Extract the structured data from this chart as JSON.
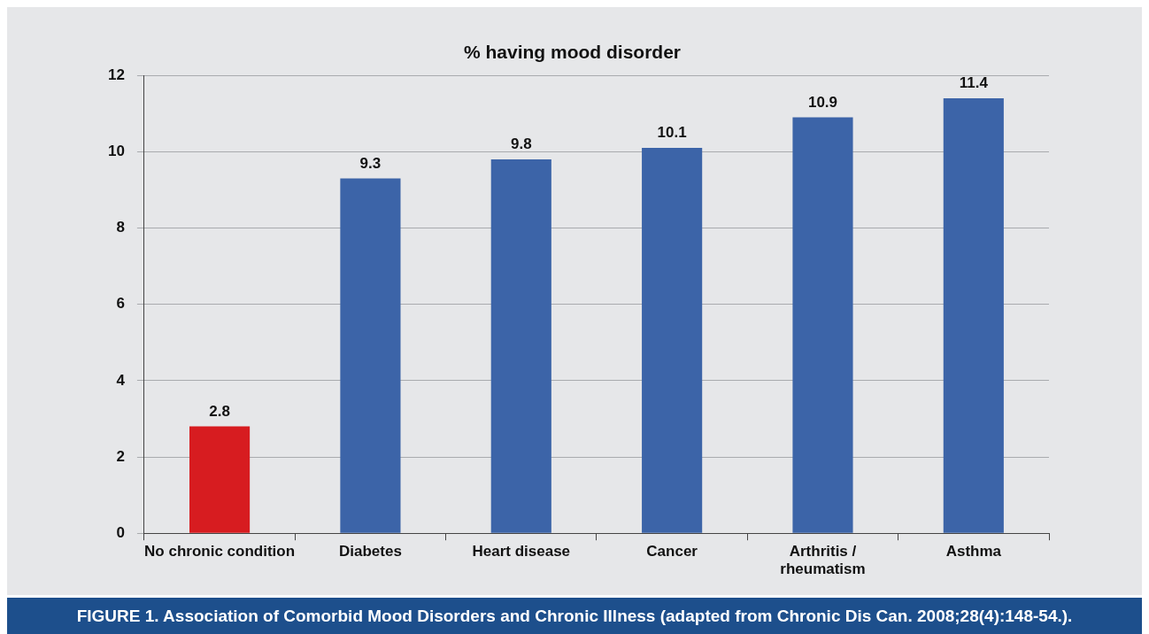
{
  "chart_data": {
    "type": "bar",
    "title": "% having mood disorder",
    "categories": [
      "No chronic condition",
      "Diabetes",
      "Heart disease",
      "Cancer",
      "Arthritis / rheumatism",
      "Asthma"
    ],
    "values": [
      2.8,
      9.3,
      9.8,
      10.1,
      10.9,
      11.4
    ],
    "colors": [
      "#d71c20",
      "#3c64a8",
      "#3c64a8",
      "#3c64a8",
      "#3c64a8",
      "#3c64a8"
    ],
    "ylim": [
      0,
      12
    ],
    "yticks": [
      0,
      2,
      4,
      6,
      8,
      10,
      12
    ],
    "grid": "y",
    "data_labels": true,
    "legend": false,
    "annotations": [
      "FIGURE 1. Association of Comorbid Mood Disorders and Chronic Illness (adapted from Chronic Dis Can. 2008;28(4):148-54.)."
    ]
  }
}
